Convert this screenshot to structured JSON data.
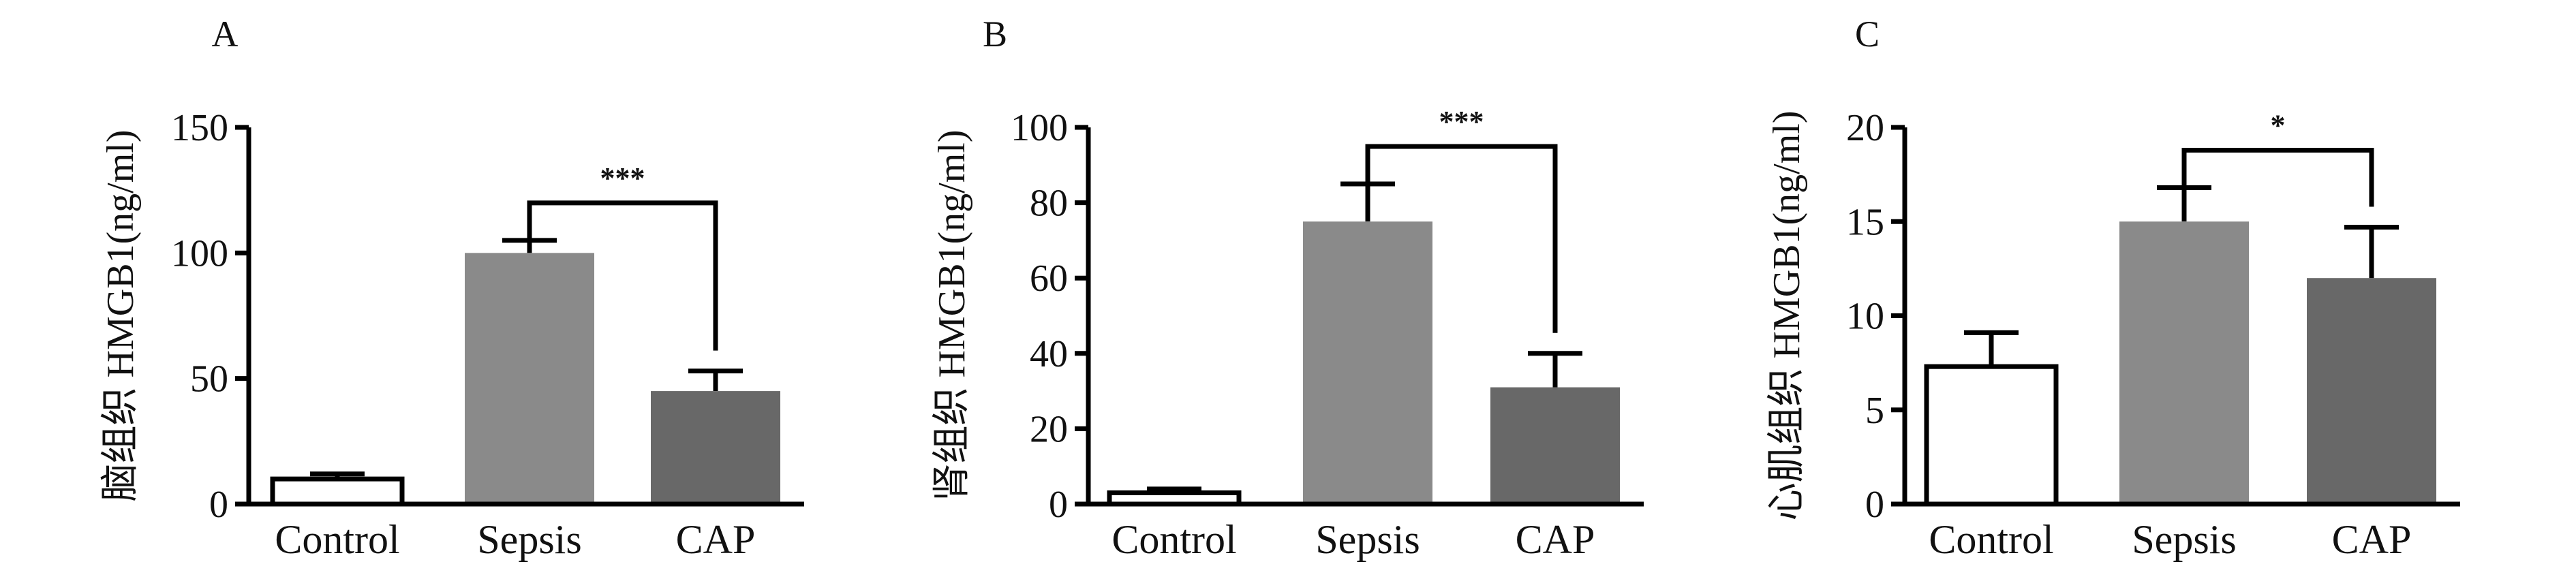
{
  "chart_data": [
    {
      "type": "bar",
      "panel": "A",
      "ylabel": "脑组织 HMGB1(ng/ml)",
      "categories": [
        "Control",
        "Sepsis",
        "CAP"
      ],
      "values": [
        10,
        100,
        45
      ],
      "errors": [
        2,
        5,
        8
      ],
      "ylim": [
        0,
        150
      ],
      "yticks": [
        0,
        50,
        100,
        150
      ],
      "ytick_labels": [
        "0",
        "50",
        "100",
        "150"
      ],
      "bar_colors": [
        "#ffffff",
        "#8a8a8a",
        "#686868"
      ],
      "significance": {
        "from": 1,
        "to": 2,
        "label": "***"
      }
    },
    {
      "type": "bar",
      "panel": "B",
      "ylabel": "肾组织 HMGB1(ng/ml)",
      "categories": [
        "Control",
        "Sepsis",
        "CAP"
      ],
      "values": [
        3,
        75,
        31
      ],
      "errors": [
        1,
        10,
        9
      ],
      "ylim": [
        0,
        100
      ],
      "yticks": [
        0,
        20,
        40,
        60,
        80,
        100
      ],
      "ytick_labels": [
        "0",
        "20",
        "40",
        "60",
        "80",
        "100"
      ],
      "bar_colors": [
        "#ffffff",
        "#8a8a8a",
        "#686868"
      ],
      "significance": {
        "from": 1,
        "to": 2,
        "label": "***"
      }
    },
    {
      "type": "bar",
      "panel": "C",
      "ylabel": "心肌组织 HMGB1(ng/ml)",
      "categories": [
        "Control",
        "Sepsis",
        "CAP"
      ],
      "values": [
        7.3,
        15,
        12
      ],
      "errors": [
        1.8,
        1.8,
        2.7
      ],
      "ylim": [
        0,
        20
      ],
      "yticks": [
        0,
        5,
        10,
        15,
        20
      ],
      "ytick_labels": [
        "0",
        "5",
        "10",
        "15",
        "20"
      ],
      "bar_colors": [
        "#ffffff",
        "#8a8a8a",
        "#686868"
      ],
      "significance": {
        "from": 1,
        "to": 2,
        "label": "*"
      }
    }
  ]
}
